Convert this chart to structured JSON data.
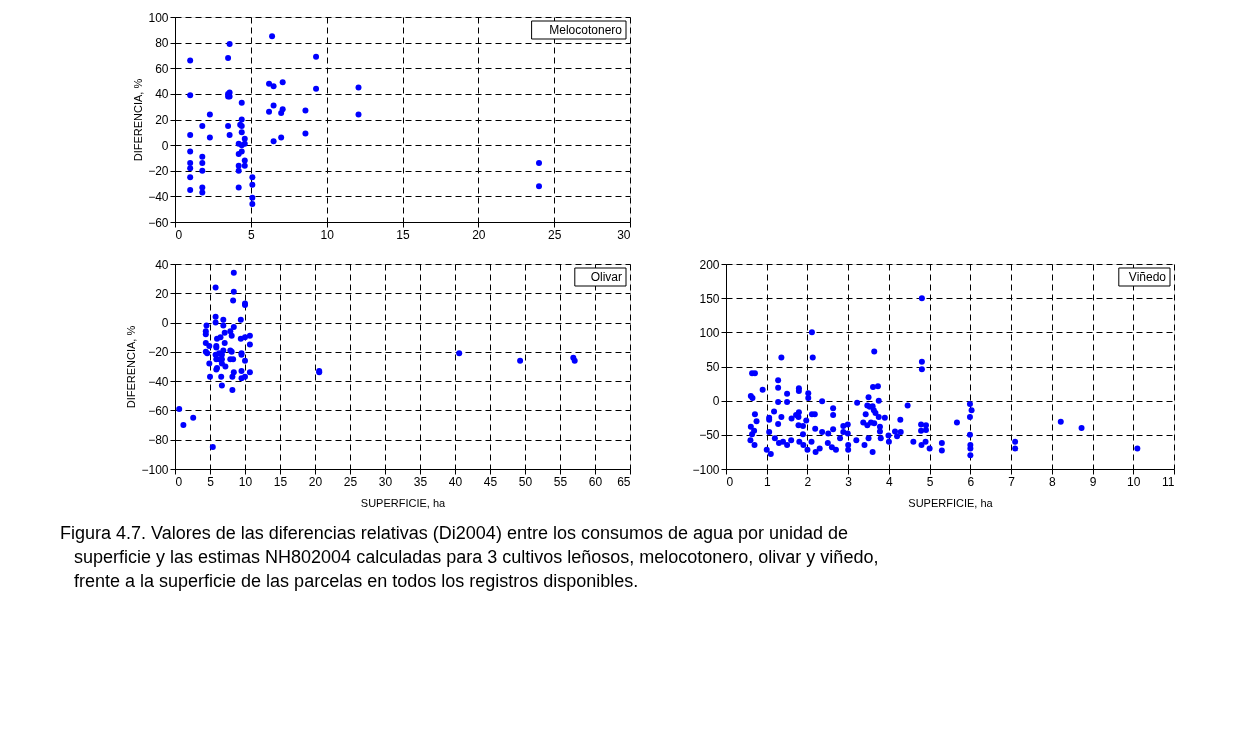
{
  "chart_data": [
    {
      "type": "scatter",
      "ylabel": "DIFERENCIA, %",
      "xlim": [
        0,
        30
      ],
      "xticks": [
        0,
        5,
        10,
        15,
        20,
        25,
        30
      ],
      "ylim": [
        -60,
        100
      ],
      "yticks": [
        -60,
        -40,
        -20,
        0,
        20,
        40,
        60,
        80,
        100
      ],
      "grid": true,
      "line_style": "dashed",
      "marker": "circle",
      "annotations": [
        "Melocotonero"
      ],
      "series": [
        {
          "color": "#0000ff",
          "x": [
            1,
            1,
            1,
            1,
            1,
            1,
            1,
            1,
            1.8,
            1.8,
            1.8,
            1.8,
            1.8,
            1.8,
            2.3,
            2.3,
            3.5,
            3.6,
            3.5,
            3.6,
            3.5,
            3.6,
            3.5,
            3.6,
            4.4,
            4.4,
            4.3,
            4.4,
            4.4,
            4.2,
            4.4,
            4.6,
            4.6,
            4.2,
            4.4,
            4.6,
            4.6,
            4.2,
            4.2,
            4.2,
            5.1,
            5.1,
            5.1,
            5.1,
            6.2,
            6.5,
            6.5,
            6.2,
            6.5,
            7.1,
            7.1,
            7,
            7,
            8.6,
            8.6,
            9.3,
            9.3,
            12.1,
            12.1,
            6.4,
            24,
            24
          ],
          "values": [
            66,
            39,
            8,
            -5,
            -14,
            -18,
            -25,
            -35,
            15,
            -9,
            -14,
            -20,
            -33,
            -37,
            24,
            6,
            68,
            79,
            40,
            41,
            38,
            38,
            15,
            8,
            33,
            20,
            16,
            15,
            10,
            1,
            0,
            1,
            5,
            -7,
            -5,
            -12,
            -16,
            -16,
            -20,
            -33,
            -25,
            -31,
            -41,
            -46,
            48,
            46,
            31,
            26,
            3,
            49,
            28,
            25,
            6,
            27,
            9,
            69,
            44,
            45,
            24,
            85,
            -14,
            -32
          ]
        }
      ]
    },
    {
      "type": "scatter",
      "xlabel": "SUPERFICIE, ha",
      "ylabel": "DIFERENCIA, %",
      "xlim": [
        0,
        65
      ],
      "xticks": [
        0,
        5,
        10,
        15,
        20,
        25,
        30,
        35,
        40,
        45,
        50,
        55,
        60,
        65
      ],
      "ylim": [
        -100,
        40
      ],
      "yticks": [
        -100,
        -80,
        -60,
        -40,
        -20,
        0,
        20,
        40
      ],
      "grid": true,
      "line_style": "dashed",
      "marker": "circle",
      "annotations": [
        "Olivar"
      ],
      "series": [
        {
          "color": "#0000ff",
          "x": [
            0.6,
            1.2,
            2.6,
            5.4,
            5.8,
            8.4,
            8.4,
            8.3,
            10,
            10,
            5.8,
            5.8,
            6.9,
            6.9,
            9.4,
            8.4,
            4.5,
            4.4,
            4.4,
            7.1,
            7.9,
            8.1,
            10.7,
            10,
            9.4,
            6,
            6.5,
            4.9,
            4.4,
            5.9,
            5.9,
            7.1,
            10.7,
            4.4,
            4.6,
            5.8,
            6.3,
            6.7,
            6.9,
            7.9,
            8.1,
            9.5,
            9.5,
            5.9,
            6.3,
            6.7,
            7.9,
            8.3,
            10,
            4.9,
            6.7,
            7.2,
            6,
            5.9,
            9.5,
            8.4,
            10.7,
            5,
            6.6,
            8.2,
            9.5,
            10,
            6.7,
            8.2,
            20.6,
            20.6,
            40.6,
            49.3,
            56.9,
            57.1
          ],
          "values": [
            -59,
            -70,
            -65,
            -85,
            24,
            34,
            21,
            15,
            13,
            12,
            4,
            0,
            2,
            -2,
            2,
            -3,
            -2,
            -6,
            -8,
            -7,
            -6,
            -9,
            -9,
            -10,
            -11,
            -11,
            -10,
            -16,
            -14,
            -16,
            -17,
            -14,
            -15,
            -20,
            -21,
            -22,
            -21,
            -22,
            -19,
            -19,
            -20,
            -21,
            -22,
            -25,
            -25,
            -25,
            -25,
            -25,
            -26,
            -28,
            -28,
            -30,
            -31,
            -32,
            -33,
            -34,
            -34,
            -37,
            -37,
            -37,
            -38,
            -37,
            -43,
            -46,
            -33,
            -34,
            -21,
            -26,
            -24,
            -26
          ]
        }
      ]
    },
    {
      "type": "scatter",
      "xlabel": "SUPERFICIE, ha",
      "xlim": [
        0,
        11
      ],
      "xticks": [
        0,
        1,
        2,
        3,
        4,
        5,
        6,
        7,
        8,
        9,
        10,
        11
      ],
      "ylim": [
        -100,
        200
      ],
      "yticks": [
        -100,
        -50,
        0,
        50,
        100,
        150,
        200
      ],
      "grid": true,
      "line_style": "dashed",
      "marker": "circle",
      "annotations": [
        "Viñedo",
        "Figura 4.7. Valores de las diferencias relativas (Di2004) entre los consumos de agua por unidad de superficie y las estimas NH802004 calculadas para 3 cultivos leñosos, melocotonero, olivar y viñedo, frente a la superficie de las parcelas en todos los registros disponibles."
      ],
      "series": [
        {
          "color": "#0000ff",
          "x": [
            0.64,
            0.71,
            0.61,
            0.65,
            0.9,
            0.71,
            0.75,
            0.61,
            0.69,
            0.64,
            1.28,
            1.28,
            1.36,
            1.28,
            1.18,
            1.06,
            1.06,
            1.36,
            1.28,
            1.06,
            1.5,
            1.5,
            1.61,
            1.72,
            1.79,
            1.79,
            1.79,
            1.78,
            1.78,
            1.89,
            1.89,
            1.97,
            2.02,
            2.02,
            2.11,
            2.13,
            2.11,
            2.18,
            2.19,
            2.36,
            2.36,
            2.63,
            2.63,
            2.63,
            2.51,
            2.88,
            2.88,
            2.99,
            2.99,
            3.22,
            3.37,
            3.43,
            3.47,
            3.5,
            3.47,
            3.53,
            3.56,
            3.6,
            3.61,
            3.64,
            3.63,
            3.64,
            3.67,
            3.73,
            3.75,
            3.75,
            3.78,
            3.78,
            3.9,
            3.99,
            4.15,
            4.28,
            4.29,
            4.46,
            4.81,
            4.81,
            4.81,
            4.79,
            4.79,
            4.91,
            4.91,
            5.67,
            5.99,
            6.03,
            5.99,
            5.99,
            8.22,
            8.73,
            0.6,
            0.7,
            1,
            1.1,
            1.2,
            1.3,
            1.4,
            1.5,
            1.6,
            1.8,
            1.9,
            2,
            2.1,
            2.2,
            2.3,
            2.5,
            2.6,
            2.7,
            2.8,
            3,
            3,
            3.2,
            3.4,
            3.5,
            3.6,
            3.8,
            4,
            4.2,
            4.8,
            4.9,
            5,
            5.3,
            5.3,
            6,
            6,
            6,
            7.1,
            7.1,
            10.1,
            4.6
          ],
          "values": [
            40,
            40,
            7,
            4,
            16,
            -20,
            -30,
            -38,
            -44,
            -49,
            30,
            19,
            63,
            -2,
            -16,
            -25,
            -28,
            -24,
            -34,
            -46,
            10,
            -2,
            -26,
            -21,
            -17,
            18,
            14,
            -24,
            -36,
            -37,
            -49,
            -29,
            11,
            4,
            100,
            63,
            -20,
            -20,
            -41,
            -1,
            -46,
            -11,
            -21,
            -42,
            -48,
            -37,
            -46,
            -35,
            -48,
            -3,
            -32,
            -20,
            -7,
            5,
            -36,
            -9,
            -32,
            -8,
            20,
            72,
            -14,
            -33,
            -18,
            21,
            0,
            -24,
            -38,
            -45,
            -25,
            -51,
            -45,
            -28,
            -46,
            -7,
            150,
            57,
            46,
            -35,
            -44,
            -36,
            -43,
            -32,
            -5,
            -14,
            -24,
            -50,
            -31,
            -40,
            -58,
            -65,
            -72,
            -78,
            -55,
            -62,
            -60,
            -65,
            -58,
            -60,
            -65,
            -72,
            -60,
            -75,
            -70,
            -62,
            -68,
            -72,
            -55,
            -65,
            -72,
            -58,
            -65,
            -55,
            -75,
            -55,
            -60,
            -52,
            -65,
            -60,
            -70,
            -62,
            -73,
            -65,
            -70,
            -80,
            -60,
            -70,
            -70,
            -60
          ]
        }
      ]
    }
  ]
}
